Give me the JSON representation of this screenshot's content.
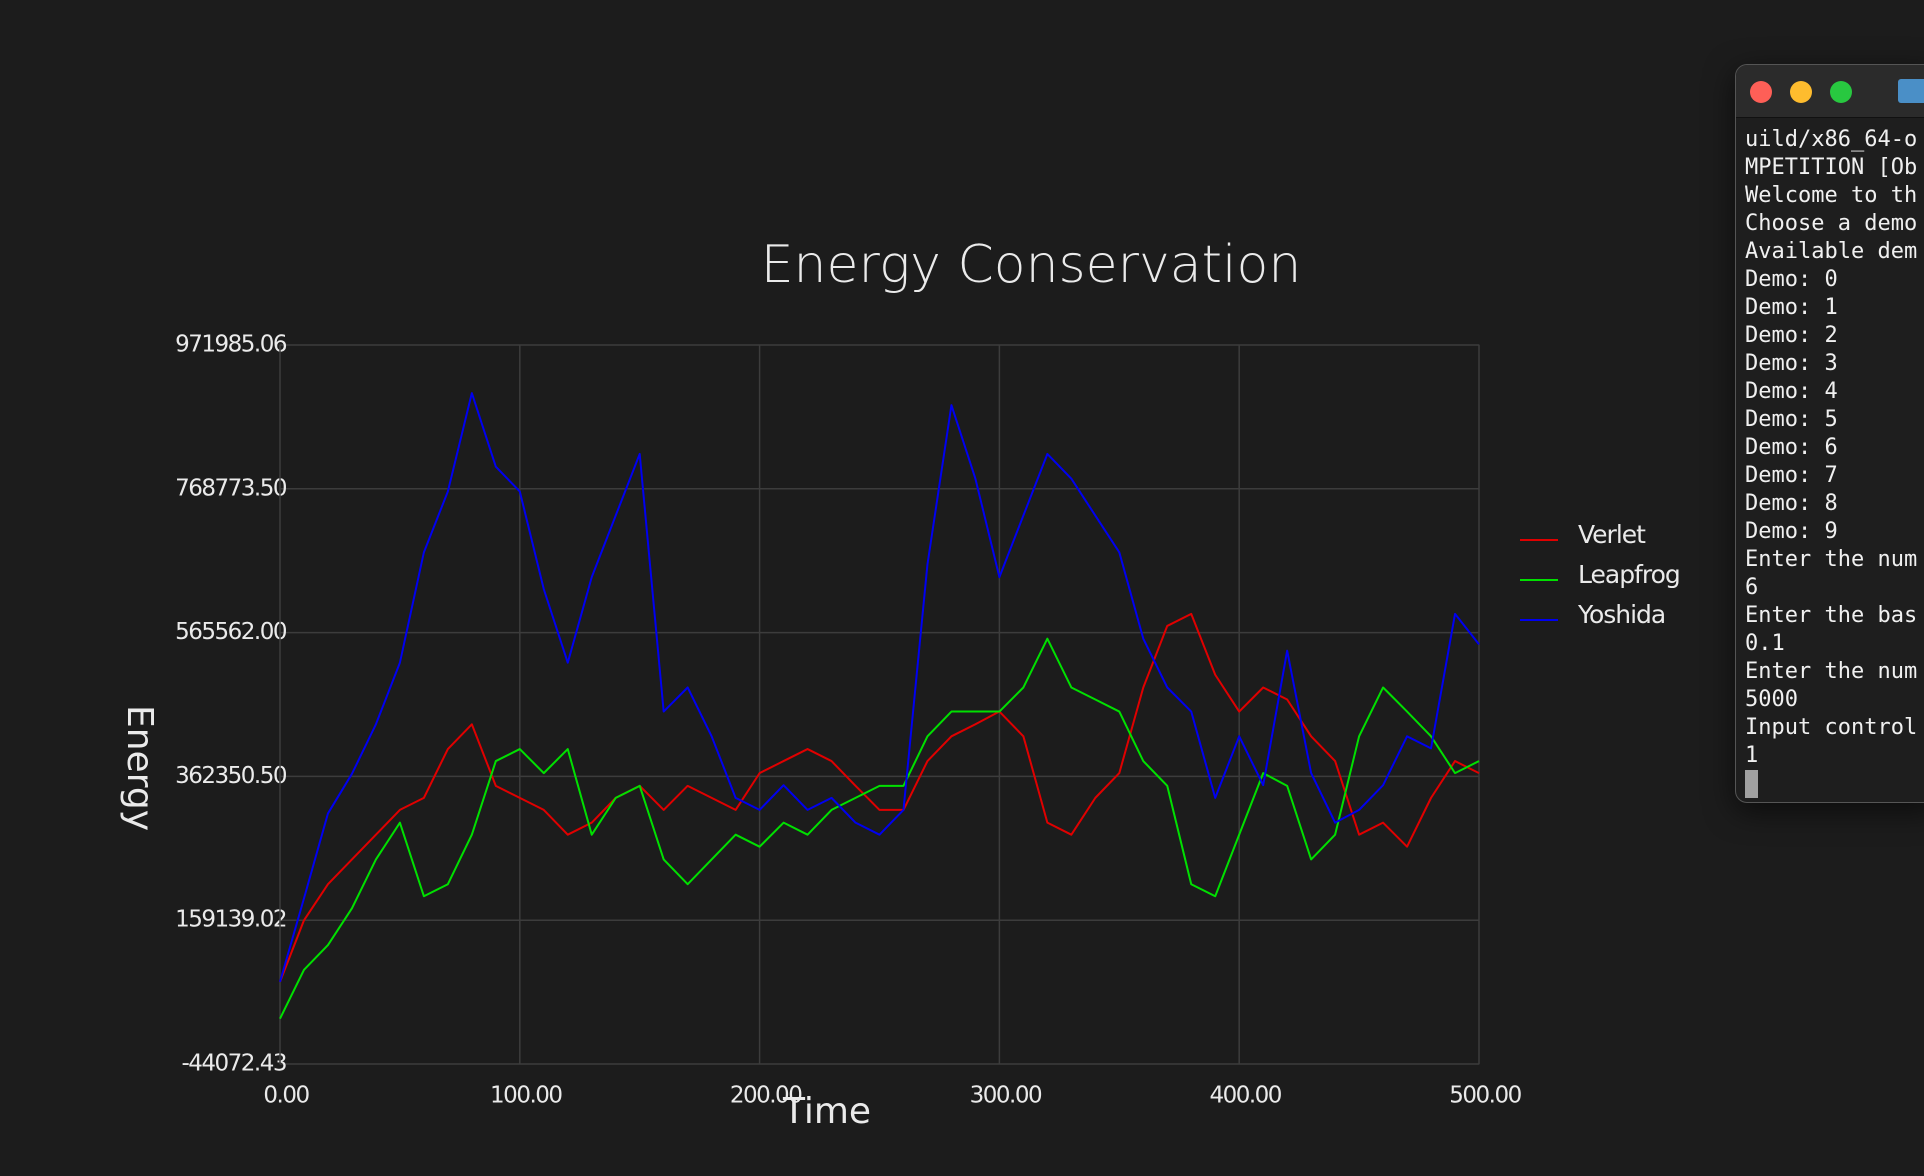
{
  "chart_data": {
    "type": "line",
    "title": "Energy  Conservation",
    "x_label": "Time",
    "y_label": "Energy",
    "x": [
      0,
      10,
      20,
      30,
      40,
      50,
      60,
      70,
      80,
      90,
      100,
      110,
      120,
      130,
      140,
      150,
      160,
      170,
      180,
      190,
      200,
      210,
      220,
      230,
      240,
      250,
      260,
      270,
      280,
      290,
      300,
      310,
      320,
      330,
      340,
      350,
      360,
      370,
      380,
      390,
      400,
      410,
      420,
      430,
      440,
      450,
      460,
      470,
      480,
      490,
      500
    ],
    "series": [
      {
        "name": "Verlet",
        "color": "#e00000",
        "values": [
          72000,
          159000,
          210000,
          245000,
          280000,
          315000,
          332000,
          401000,
          436000,
          349000,
          332000,
          315000,
          280000,
          297000,
          332000,
          349000,
          315000,
          349000,
          332000,
          315000,
          367000,
          384000,
          401000,
          384000,
          349000,
          315000,
          315000,
          384000,
          419000,
          436000,
          454000,
          419000,
          297000,
          280000,
          332000,
          367000,
          488000,
          575000,
          592000,
          506000,
          454000,
          488000,
          471000,
          419000,
          384000,
          280000,
          297000,
          263000,
          332000,
          384000,
          367000
        ]
      },
      {
        "name": "Leapfrog",
        "color": "#00e000",
        "values": [
          20000,
          89000,
          124000,
          176000,
          245000,
          297000,
          193000,
          210000,
          280000,
          384000,
          401000,
          367000,
          401000,
          280000,
          332000,
          349000,
          245000,
          210000,
          245000,
          280000,
          263000,
          297000,
          280000,
          315000,
          332000,
          349000,
          349000,
          419000,
          454000,
          454000,
          454000,
          488000,
          557000,
          488000,
          471000,
          454000,
          384000,
          349000,
          210000,
          193000,
          280000,
          367000,
          349000,
          245000,
          280000,
          419000,
          488000,
          454000,
          419000,
          367000,
          384000
        ]
      },
      {
        "name": "Yoshida",
        "color": "#0000f0",
        "values": [
          72000,
          190000,
          310000,
          366000,
          436000,
          523000,
          679000,
          765000,
          904000,
          800000,
          765000,
          627000,
          523000,
          644000,
          731000,
          818000,
          454000,
          488000,
          419000,
          332000,
          315000,
          350000,
          315000,
          332000,
          297000,
          280000,
          315000,
          662000,
          887000,
          783000,
          644000,
          731000,
          818000,
          783000,
          731000,
          679000,
          557000,
          488000,
          454000,
          332000,
          419000,
          350000,
          540000,
          367000,
          297000,
          315000,
          350000,
          419000,
          402000,
          592000,
          549000
        ]
      }
    ],
    "xlim": [
      0,
      500
    ],
    "xticks": [
      {
        "value": 0,
        "label": "0.00"
      },
      {
        "value": 100,
        "label": "100.00"
      },
      {
        "value": 200,
        "label": "200.00"
      },
      {
        "value": 300,
        "label": "300.00"
      },
      {
        "value": 400,
        "label": "400.00"
      },
      {
        "value": 500,
        "label": "500.00"
      }
    ],
    "ylim": [
      -44072.43,
      971985.06
    ],
    "yticks": [
      -44072.43,
      159139.02,
      {
        "value": 362350.5,
        "label": "362350.50"
      },
      {
        "value": 565562,
        "label": "565562.00"
      },
      {
        "value": 768773.5,
        "label": "768773.50"
      },
      971985.06
    ],
    "grid": true,
    "legend": "right"
  },
  "terminal": {
    "lines": [
      "uild/x86_64-o",
      "MPETITION [Ob",
      "Welcome to th",
      "Choose a demo",
      "Available dem",
      "Demo: 0",
      "Demo: 1",
      "Demo: 2",
      "Demo: 3",
      "Demo: 4",
      "Demo: 5",
      "Demo: 6",
      "Demo: 7",
      "Demo: 8",
      "Demo: 9",
      "Enter the num",
      "6",
      "Enter the bas",
      "0.1",
      "Enter the num",
      "5000",
      "Input control",
      "1"
    ]
  }
}
